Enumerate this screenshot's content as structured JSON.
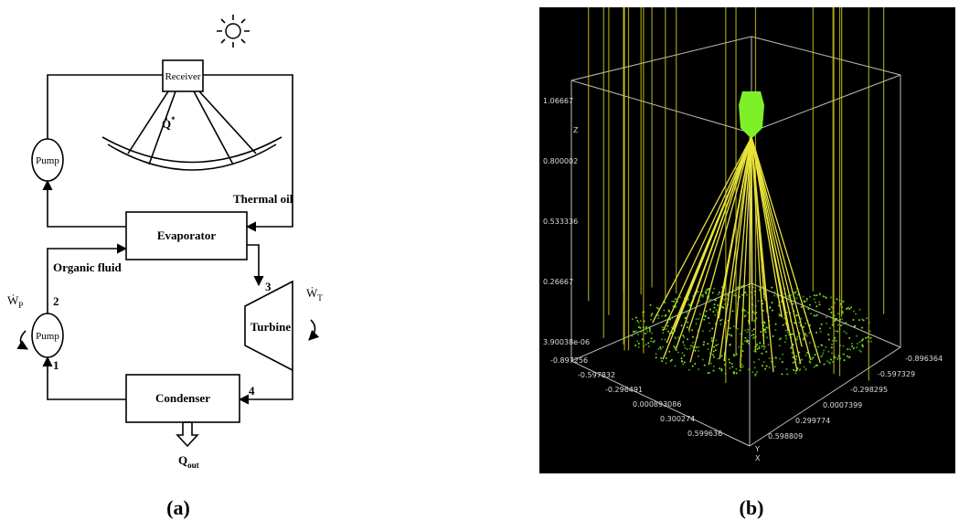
{
  "panel_a": {
    "caption": "(a)",
    "receiver": "Receiver",
    "heat_in": {
      "main": "Q̇",
      "sup": "*"
    },
    "pump_top": "Pump",
    "thermal_oil": "Thermal oil",
    "evaporator": "Evaporator",
    "organic_fluid": "Organic fluid",
    "pump_work": {
      "main": "Ẇ",
      "sub": "P"
    },
    "state_2": "2",
    "pump_bottom": "Pump",
    "state_1": "1",
    "state_3": "3",
    "turbine_work": {
      "main": "Ẇ",
      "sub": "T"
    },
    "turbine": "Turbine",
    "condenser": "Condenser",
    "state_4": "4",
    "heat_out": {
      "main": "Q",
      "sub": "out"
    }
  },
  "panel_b": {
    "caption": "(b)",
    "z_axis": "Z",
    "z_ticks": [
      "3.90038e-06",
      "0.26667",
      "0.533336",
      "0.800002",
      "1.06667"
    ],
    "x_ticks": [
      "-0.897256",
      "-0.597832",
      "-0.296491",
      "0.000893086",
      "0.300274",
      "0.599636"
    ],
    "y_ticks": [
      "-0.896364",
      "-0.597329",
      "-0.298295",
      "0.0007399",
      "0.299774",
      "0.598809"
    ],
    "y_axis": "Y",
    "x_axis": "X"
  }
}
